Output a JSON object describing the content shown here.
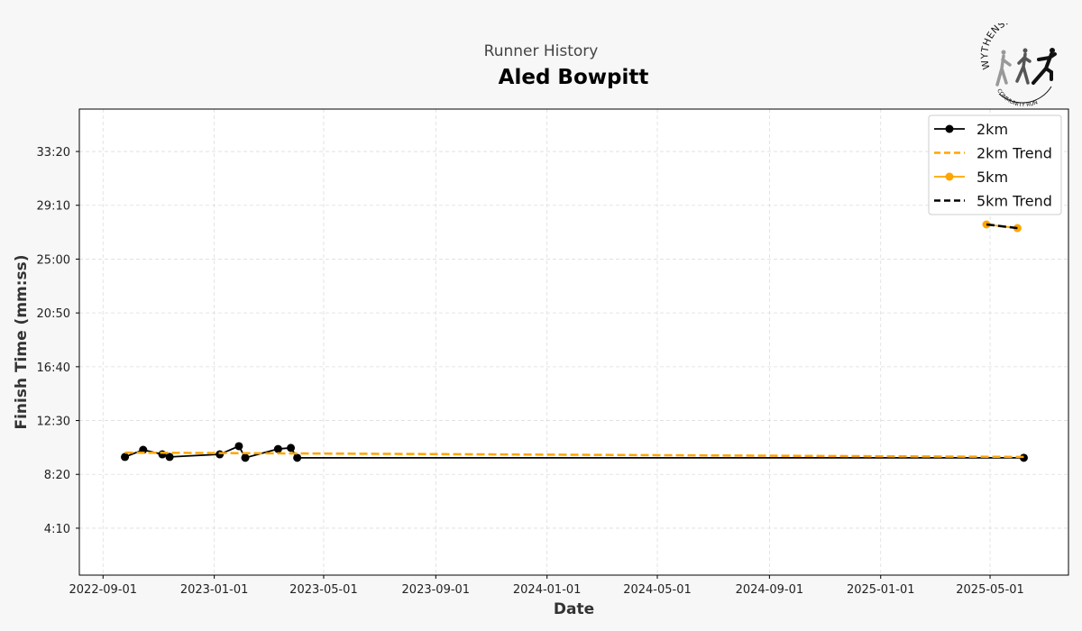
{
  "header": {
    "suptitle": "Runner History",
    "title": "Aled Bowpitt",
    "logo_text": "WYTHENSHAWE COMMUNITY RUN"
  },
  "chart_data": {
    "type": "line",
    "title": "Aled Bowpitt",
    "xlabel": "Date",
    "ylabel": "Finish Time (mm:ss)",
    "xlim": [
      "2022-08-06",
      "2025-07-26"
    ],
    "ylim_seconds": [
      32,
      2197
    ],
    "x_ticks": [
      "2022-09-01",
      "2023-01-01",
      "2023-05-01",
      "2023-09-01",
      "2024-01-01",
      "2024-05-01",
      "2024-09-01",
      "2025-01-01",
      "2025-05-01"
    ],
    "y_ticks": [
      "4:10",
      "8:20",
      "12:30",
      "16:40",
      "20:50",
      "25:00",
      "29:10",
      "33:20"
    ],
    "grid": true,
    "legend_position": "top-right",
    "series": [
      {
        "name": "2km",
        "color": "#000000",
        "style": "solid-markers",
        "x": [
          "2022-09-25",
          "2022-10-15",
          "2022-11-05",
          "2022-11-13",
          "2023-01-07",
          "2023-01-28",
          "2023-02-04",
          "2023-03-12",
          "2023-03-26",
          "2023-04-02",
          "2025-06-07"
        ],
        "y": [
          "9:41",
          "10:14",
          "9:53",
          "9:41",
          "9:53",
          "10:31",
          "9:37",
          "10:18",
          "10:23",
          "9:37",
          "9:37"
        ]
      },
      {
        "name": "2km Trend",
        "color": "#FFA500",
        "style": "dashed",
        "x": [
          "2022-09-25",
          "2025-06-07"
        ],
        "y": [
          "10:01",
          "9:41"
        ]
      },
      {
        "name": "5km",
        "color": "#FFA500",
        "style": "solid-markers",
        "x": [
          "2025-04-27",
          "2025-05-31"
        ],
        "y": [
          "27:41",
          "27:24"
        ]
      },
      {
        "name": "5km Trend",
        "color": "#000000",
        "style": "dashed",
        "x": [
          "2025-04-27",
          "2025-05-31"
        ],
        "y": [
          "27:41",
          "27:24"
        ]
      }
    ]
  }
}
